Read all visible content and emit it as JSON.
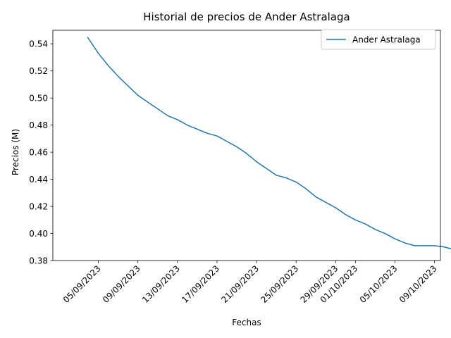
{
  "chart_data": {
    "type": "line",
    "title": "Historial de precios de Ander Astralaga",
    "xlabel": "Fechas",
    "ylabel": "Precios (M)",
    "ylim": [
      0.38,
      0.55
    ],
    "yticks": [
      0.38,
      0.4,
      0.42,
      0.44,
      0.46,
      0.48,
      0.5,
      0.52,
      0.54
    ],
    "ytick_labels": [
      "0.38",
      "0.40",
      "0.42",
      "0.44",
      "0.46",
      "0.48",
      "0.50",
      "0.52",
      "0.54"
    ],
    "xlim_day_offsets": [
      -0.6,
      38.6
    ],
    "xticks": [
      {
        "label": "05/09/2023",
        "day": 4
      },
      {
        "label": "09/09/2023",
        "day": 8
      },
      {
        "label": "13/09/2023",
        "day": 12
      },
      {
        "label": "17/09/2023",
        "day": 16
      },
      {
        "label": "21/09/2023",
        "day": 20
      },
      {
        "label": "25/09/2023",
        "day": 24
      },
      {
        "label": "29/09/2023",
        "day": 28
      },
      {
        "label": "01/10/2023",
        "day": 30
      },
      {
        "label": "05/10/2023",
        "day": 34
      },
      {
        "label": "09/10/2023",
        "day": 38
      }
    ],
    "x_start_date": "01/09/2023",
    "grid": false,
    "legend_position": "top-right",
    "series": [
      {
        "name": "Ander Astralaga",
        "color": "#1f77b4",
        "x_days": [
          2.9,
          4,
          5,
          6,
          7,
          8,
          9,
          10,
          11,
          12,
          13,
          14,
          15,
          16,
          17,
          18,
          19,
          20,
          21,
          22,
          23,
          24,
          25,
          26,
          27,
          28,
          29,
          30,
          31,
          32,
          33,
          34,
          35,
          36,
          37,
          38,
          39,
          40
        ],
        "values": [
          0.545,
          0.533,
          0.524,
          0.516,
          0.509,
          0.502,
          0.497,
          0.492,
          0.487,
          0.484,
          0.48,
          0.477,
          0.474,
          0.472,
          0.468,
          0.464,
          0.459,
          0.453,
          0.448,
          0.443,
          0.441,
          0.438,
          0.433,
          0.427,
          0.423,
          0.419,
          0.414,
          0.41,
          0.407,
          0.403,
          0.4,
          0.396,
          0.393,
          0.391,
          0.391,
          0.391,
          0.39,
          0.388
        ]
      }
    ]
  }
}
